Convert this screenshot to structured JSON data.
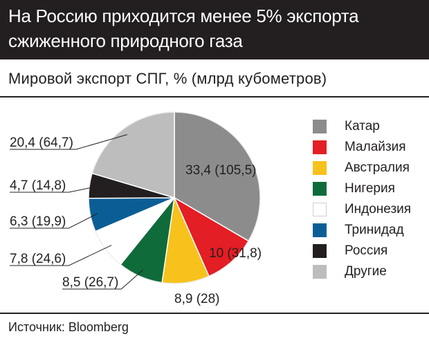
{
  "header": {
    "title_line1": "На Россию приходится менее 5% экспорта",
    "title_line2": "сжиженного природного газа"
  },
  "subtitle": "Мировой экспорт СПГ, % (млрд кубометров)",
  "source": "Источник: Bloomberg",
  "chart_data": {
    "type": "pie",
    "title": "На Россию приходится менее 5% экспорта сжиженного природного газа",
    "subtitle": "Мировой экспорт СПГ, % (млрд кубометров)",
    "legend_position": "right",
    "slices": [
      {
        "name": "Катар",
        "percent": 33.4,
        "volume": 105.5,
        "label": "33,4 (105,5)",
        "color": "#8c8c8c"
      },
      {
        "name": "Малайзия",
        "percent": 10,
        "volume": 31.8,
        "label": "10 (31,8)",
        "color": "#e31e24"
      },
      {
        "name": "Австралия",
        "percent": 8.9,
        "volume": 28,
        "label": "8,9 (28)",
        "color": "#f7c21c"
      },
      {
        "name": "Нигерия",
        "percent": 8.5,
        "volume": 26.7,
        "label": "8,5 (26,7)",
        "color": "#0f6b3a"
      },
      {
        "name": "Индонезия",
        "percent": 7.8,
        "volume": 24.6,
        "label": "7,8 (24,6)",
        "color": "#ffffff"
      },
      {
        "name": "Тринидад",
        "percent": 6.3,
        "volume": 19.9,
        "label": "6,3 (19,9)",
        "color": "#0b5e95"
      },
      {
        "name": "Россия",
        "percent": 4.7,
        "volume": 14.8,
        "label": "4,7 (14,8)",
        "color": "#231f20"
      },
      {
        "name": "Другие",
        "percent": 20.4,
        "volume": 64.7,
        "label": "20,4 (64,7)",
        "color": "#bdbdbd"
      }
    ]
  }
}
